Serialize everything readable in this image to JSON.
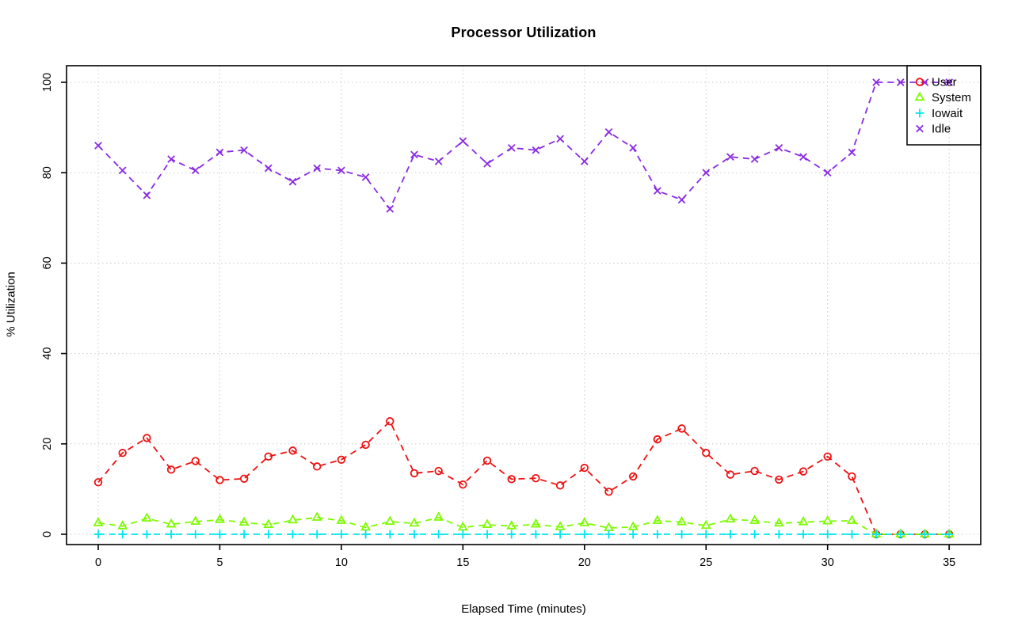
{
  "chart_data": {
    "type": "line",
    "title": "Processor Utilization",
    "xlabel": "Elapsed Time (minutes)",
    "ylabel": "% Utilization",
    "xlim": [
      0,
      35
    ],
    "ylim": [
      0,
      100
    ],
    "x_ticks": [
      0,
      5,
      10,
      15,
      20,
      25,
      30,
      35
    ],
    "y_ticks": [
      0,
      20,
      40,
      60,
      80,
      100
    ],
    "grid": true,
    "grid_style": "dotted",
    "grid_color": "#c9c9c9",
    "legend_position": "topright",
    "x": [
      0,
      1,
      2,
      3,
      4,
      5,
      6,
      7,
      8,
      9,
      10,
      11,
      12,
      13,
      14,
      15,
      16,
      17,
      18,
      19,
      20,
      21,
      22,
      23,
      24,
      25,
      26,
      27,
      28,
      29,
      30,
      31,
      32,
      33,
      34,
      35
    ],
    "series": [
      {
        "name": "User",
        "marker": "circle",
        "marker_name": "open-circle-marker",
        "color": "#ee1111",
        "values": [
          11.5,
          18,
          21.3,
          14.3,
          16.2,
          12,
          12.3,
          17.2,
          18.5,
          15,
          16.5,
          19.8,
          25,
          13.5,
          14,
          11,
          16.3,
          12.2,
          12.4,
          10.8,
          14.7,
          9.4,
          12.8,
          21,
          23.4,
          18,
          13.2,
          14,
          12.1,
          13.9,
          17.2,
          12.8,
          0,
          0,
          0,
          0
        ]
      },
      {
        "name": "System",
        "marker": "triangle",
        "marker_name": "open-triangle-marker",
        "color": "#7cfc00",
        "values": [
          2.5,
          1.8,
          3.5,
          2.2,
          2.8,
          3.2,
          2.6,
          2.1,
          3.1,
          3.7,
          3,
          1.5,
          2.8,
          2.4,
          3.7,
          1.5,
          2.1,
          1.8,
          2.2,
          1.6,
          2.5,
          1.4,
          1.6,
          3,
          2.7,
          1.9,
          3.3,
          3,
          2.4,
          2.7,
          2.9,
          3,
          0,
          0,
          0,
          0
        ]
      },
      {
        "name": "Iowait",
        "marker": "plus",
        "marker_name": "plus-marker",
        "color": "#00e5ee",
        "values": [
          0,
          0,
          0,
          0,
          0,
          0,
          0,
          0,
          0,
          0,
          0,
          0,
          0,
          0,
          0,
          0,
          0,
          0,
          0,
          0,
          0,
          0,
          0,
          0,
          0,
          0,
          0,
          0,
          0,
          0,
          0,
          0,
          0,
          0,
          0,
          0
        ]
      },
      {
        "name": "Idle",
        "marker": "x",
        "marker_name": "x-marker",
        "color": "#8a2be2",
        "values": [
          86,
          80.5,
          75,
          83,
          80.5,
          84.5,
          85,
          81,
          78,
          81,
          80.5,
          79,
          72,
          84,
          82.5,
          87,
          82,
          85.5,
          85,
          87.5,
          82.5,
          89,
          85.5,
          76,
          74,
          80,
          83.5,
          83,
          85.5,
          83.5,
          80,
          84.5,
          100,
          100,
          100,
          100
        ]
      }
    ]
  }
}
